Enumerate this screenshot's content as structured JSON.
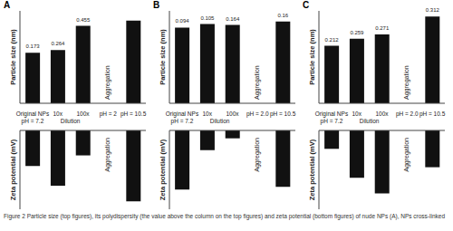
{
  "chart_data": [
    {
      "type": "bar",
      "title": "A",
      "ylabel": "Particle size (nm)",
      "categories": [
        "Original NPs\npH = 7.2",
        "10x",
        "100x",
        "pH = 2",
        "pH = 10.5"
      ],
      "values": [
        115,
        121,
        176,
        null,
        188
      ],
      "polydispersity": [
        0.173,
        0.264,
        0.455,
        null,
        null
      ],
      "color": "#111111",
      "ylim": [
        0,
        210
      ],
      "yticks": [],
      "tick_labels": "x",
      "annotations": [
        {
          "text": "Dilution",
          "categories": [
            1,
            2
          ]
        },
        {
          "text": "Aggregation",
          "categories": [
            3
          ]
        }
      ]
    },
    {
      "type": "bar",
      "ylabel": "Zeta potential (mV)",
      "categories": [
        null,
        null,
        null,
        null,
        null
      ],
      "values": [
        -27,
        -42,
        -19,
        null,
        -54
      ],
      "color": "#111111",
      "ylim": [
        -60,
        0
      ],
      "yticks": [],
      "tick_labels": false,
      "annotations": [
        {
          "text": "Aggregation",
          "categories": [
            3
          ]
        }
      ]
    },
    {
      "type": "bar",
      "title": "B",
      "ylabel": "Particle size (nm)",
      "categories": [
        "Original NPs\npH = 7.2",
        "10x",
        "100x",
        "pH = 2.0",
        "pH = 10.5"
      ],
      "values": [
        172,
        180,
        178,
        null,
        186
      ],
      "polydispersity": [
        0.094,
        0.105,
        0.164,
        null,
        0.16
      ],
      "color": "#111111",
      "ylim": [
        0,
        210
      ],
      "yticks": [],
      "tick_labels": "x",
      "annotations": [
        {
          "text": "Dilution",
          "categories": [
            1,
            2
          ]
        },
        {
          "text": "Aggregation",
          "categories": [
            3
          ]
        }
      ]
    },
    {
      "type": "bar",
      "ylabel": "Zeta potential (mV)",
      "categories": [
        null,
        null,
        null,
        null,
        null
      ],
      "values": [
        -45,
        -15,
        -6,
        null,
        -43
      ],
      "color": "#111111",
      "ylim": [
        -60,
        0
      ],
      "yticks": [],
      "tick_labels": false,
      "annotations": [
        {
          "text": "Aggregation",
          "categories": [
            3
          ]
        }
      ]
    },
    {
      "type": "bar",
      "title": "C",
      "ylabel": "Particle size (nm)",
      "categories": [
        "Original NPs\npH = 7.2",
        "10x",
        "100x",
        "pH = 2.0",
        "pH = 10.5"
      ],
      "values": [
        280,
        314,
        335,
        null,
        422
      ],
      "polydispersity": [
        0.212,
        0.259,
        0.271,
        null,
        0.312
      ],
      "color": "#111111",
      "ylim": [
        0,
        450
      ],
      "yticks": [],
      "tick_labels": "x",
      "annotations": [
        {
          "text": "Dilution",
          "categories": [
            1,
            2
          ]
        },
        {
          "text": "Aggregation",
          "categories": [
            3
          ]
        }
      ]
    },
    {
      "type": "bar",
      "ylabel": "Zeta potential (mV)",
      "categories": [
        null,
        null,
        null,
        null,
        null
      ],
      "values": [
        -14,
        -36,
        -48,
        null,
        -28
      ],
      "color": "#111111",
      "ylim": [
        -60,
        0
      ],
      "yticks": [],
      "tick_labels": false,
      "annotations": [
        {
          "text": "Aggregation",
          "categories": [
            3
          ]
        }
      ]
    }
  ],
  "caption": "Figure 2 Particle size (top figures), its polydispersity (the value above the column on the top figures) and zeta potential (bottom figures) of nude NPs (A), NPs cross-linked"
}
